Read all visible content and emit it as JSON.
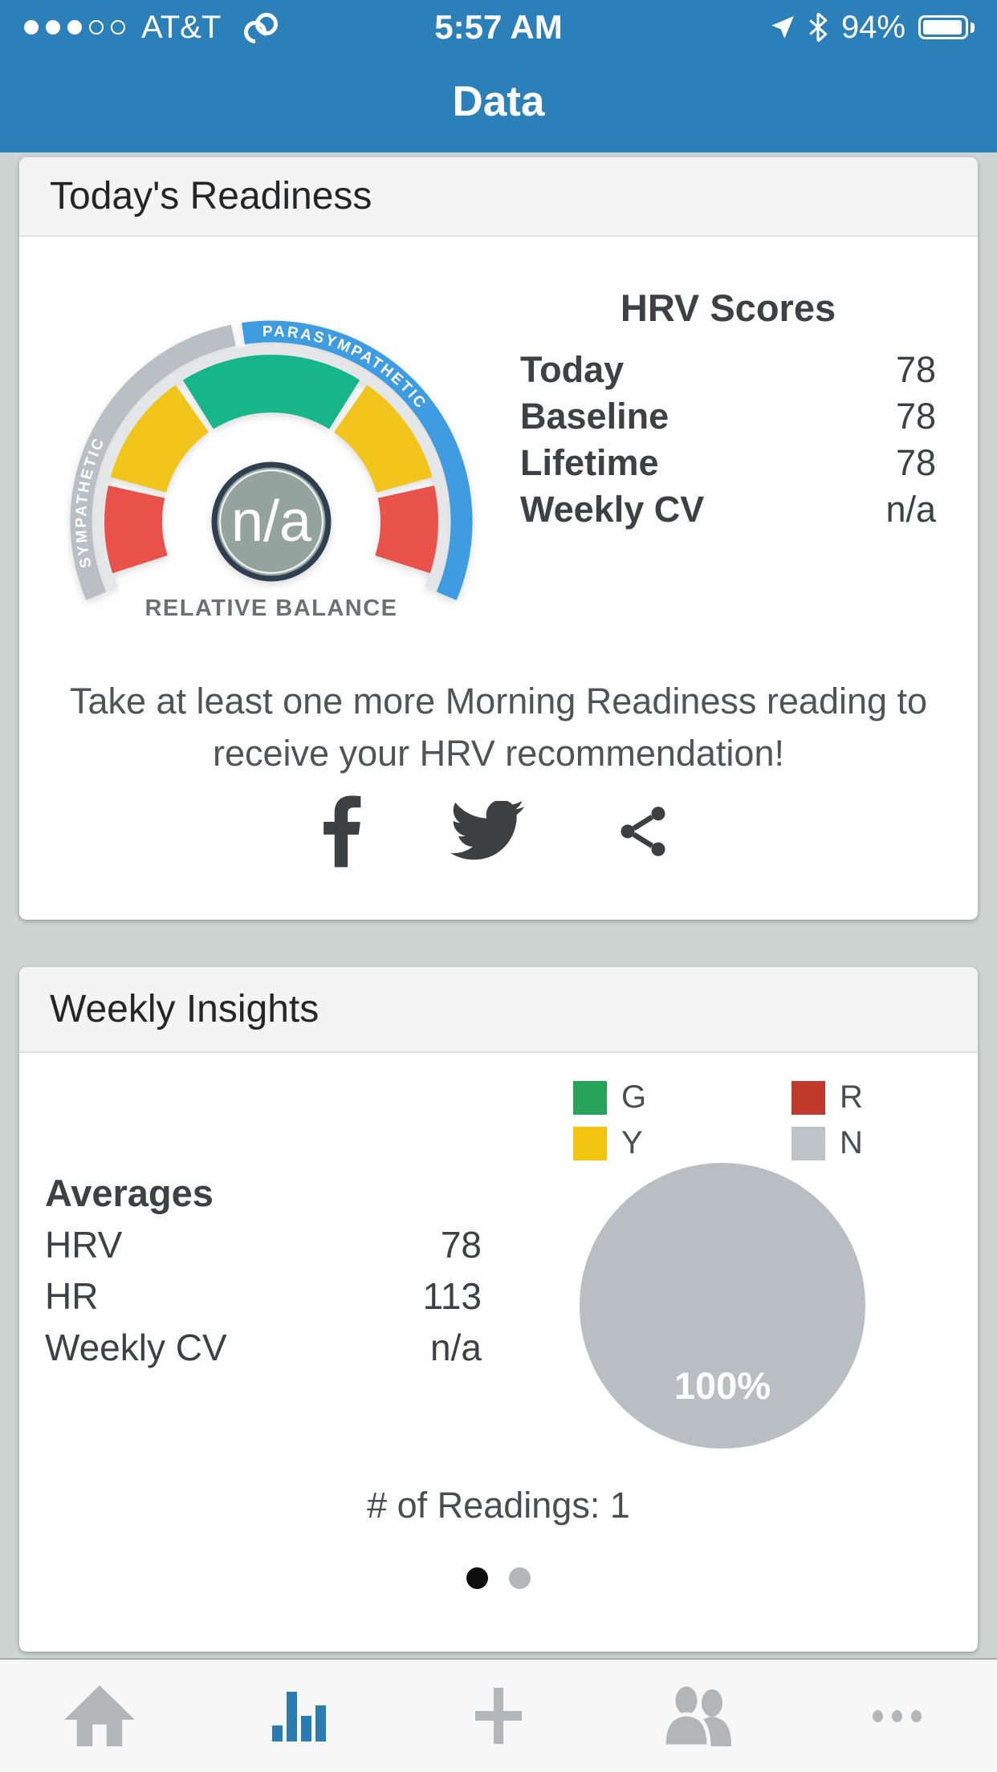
{
  "status_bar": {
    "carrier": "AT&T",
    "time": "5:57 AM",
    "battery_percent": "94%",
    "signal_filled": 3,
    "signal_total": 5,
    "icons": [
      "personal-hotspot-icon",
      "location-arrow-icon",
      "bluetooth-icon",
      "battery-icon"
    ]
  },
  "nav": {
    "title": "Data"
  },
  "readiness_card": {
    "title": "Today's Readiness",
    "gauge": {
      "center_value": "n/a",
      "center_label": "RELATIVE BALANCE"
    },
    "scores": {
      "title": "HRV Scores",
      "rows": [
        {
          "label": "Today",
          "value": "78"
        },
        {
          "label": "Baseline",
          "value": "78"
        },
        {
          "label": "Lifetime",
          "value": "78"
        },
        {
          "label": "Weekly CV",
          "value": "n/a"
        }
      ]
    },
    "message": "Take at least one more Morning Readiness reading to receive your HRV recommendation!",
    "share_icons": [
      "facebook-icon",
      "twitter-icon",
      "share-icon"
    ]
  },
  "insights_card": {
    "title": "Weekly Insights",
    "legend": [
      {
        "label": "G",
        "color": "#27a35c"
      },
      {
        "label": "R",
        "color": "#c0392b"
      },
      {
        "label": "Y",
        "color": "#f1c40f"
      },
      {
        "label": "N",
        "color": "#bdc3c7"
      }
    ],
    "averages": {
      "title": "Averages",
      "rows": [
        {
          "label": "HRV",
          "value": "78"
        },
        {
          "label": "HR",
          "value": "113"
        },
        {
          "label": "Weekly CV",
          "value": "n/a"
        }
      ]
    },
    "pie_label": "100%",
    "readings_label": "# of Readings: 1",
    "pagination": {
      "count": 2,
      "active": 0
    }
  },
  "tab_bar": {
    "active_index": 1,
    "tabs": [
      {
        "icon": "home-icon"
      },
      {
        "icon": "bar-chart-icon"
      },
      {
        "icon": "plus-icon"
      },
      {
        "icon": "people-icon"
      },
      {
        "icon": "ellipsis-icon"
      }
    ]
  },
  "colors": {
    "header_blue": "#2b80b9",
    "page_bg": "#cdd4d1",
    "active_tab_blue": "#2b7cb3",
    "pie_gray": "#b9bec3",
    "gauge_center_fill": "#95a39f",
    "gauge_center_ring": "#2e4050"
  },
  "chart_data": [
    {
      "type": "gauge",
      "title": "Relative Balance gauge",
      "center_value": "n/a",
      "center_label": "RELATIVE BALANCE",
      "outer_arcs": [
        {
          "label": "SYMPATHETIC",
          "color": "#b9c0c5",
          "start_deg": 203,
          "end_deg": 101.5
        },
        {
          "label": "PARASYMPATHETIC",
          "color": "#3f9ce0",
          "start_deg": 98.5,
          "end_deg": -23
        }
      ],
      "segments": [
        {
          "color": "#e8524a",
          "start_deg": 198,
          "end_deg": 167.5
        },
        {
          "color": "#f2c51d",
          "start_deg": 164.5,
          "end_deg": 125
        },
        {
          "color": "#17b58a",
          "start_deg": 122,
          "end_deg": 58
        },
        {
          "color": "#f2c51d",
          "start_deg": 55,
          "end_deg": 15.5
        },
        {
          "color": "#e8524a",
          "start_deg": 12.5,
          "end_deg": -18
        }
      ]
    },
    {
      "type": "pie",
      "title": "Weekly readiness color distribution",
      "categories": [
        "G",
        "Y",
        "R",
        "N"
      ],
      "values": [
        0,
        0,
        0,
        100
      ],
      "colors": [
        "#27a35c",
        "#f1c40f",
        "#c0392b",
        "#b9bec3"
      ],
      "data_label": "100%",
      "readings": 1
    }
  ]
}
